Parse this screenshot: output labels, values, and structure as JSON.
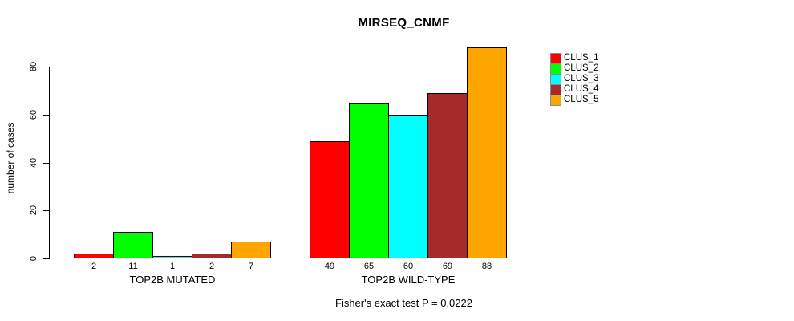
{
  "chart_data": {
    "type": "bar",
    "title": "MIRSEQ_CNMF",
    "ylabel": "number of cases",
    "yticks": [
      0,
      20,
      40,
      60,
      80
    ],
    "ylim": [
      0,
      88
    ],
    "grid": false,
    "legend_position": "top-right-outside-bars",
    "categories": [
      "TOP2B MUTATED",
      "TOP2B WILD-TYPE"
    ],
    "groups": [
      {
        "label": "TOP2B MUTATED",
        "values": [
          2,
          11,
          1,
          2,
          7
        ]
      },
      {
        "label": "TOP2B WILD-TYPE",
        "values": [
          49,
          65,
          60,
          69,
          88
        ]
      }
    ],
    "series": [
      {
        "name": "CLUS_1",
        "color": "#ff0000",
        "values": [
          2,
          49
        ]
      },
      {
        "name": "CLUS_2",
        "color": "#00ff00",
        "values": [
          11,
          65
        ]
      },
      {
        "name": "CLUS_3",
        "color": "#00ffff",
        "values": [
          1,
          60
        ]
      },
      {
        "name": "CLUS_4",
        "color": "#a52a2a",
        "values": [
          2,
          69
        ]
      },
      {
        "name": "CLUS_5",
        "color": "#ffa500",
        "values": [
          7,
          88
        ]
      }
    ],
    "bar_value_labels_shown": true,
    "caption": "Fisher's exact test P = 0.0222"
  }
}
